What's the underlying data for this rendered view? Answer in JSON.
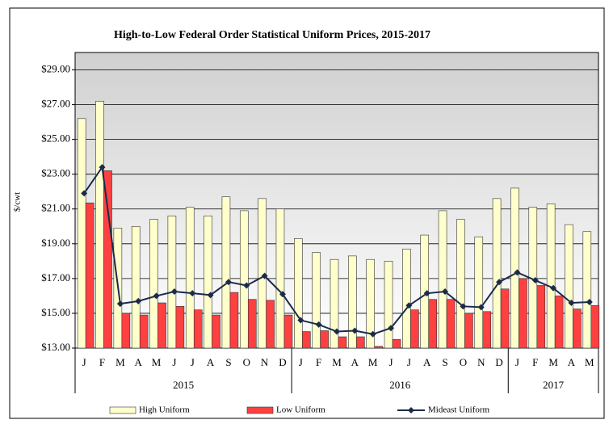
{
  "chart_data": {
    "type": "bar_line",
    "title": "High-to-Low Federal Order Statistical Uniform Prices, 2015-2017",
    "y_label": "$/cwt",
    "categories": [
      "J",
      "F",
      "M",
      "A",
      "M",
      "J",
      "J",
      "A",
      "S",
      "O",
      "N",
      "D",
      "J",
      "F",
      "M",
      "A",
      "M",
      "J",
      "J",
      "A",
      "S",
      "O",
      "N",
      "D",
      "J",
      "F",
      "M",
      "A",
      "M"
    ],
    "groups": [
      {
        "label": "2015",
        "span": 12
      },
      {
        "label": "2016",
        "span": 12
      },
      {
        "label": "2017",
        "span": 5
      }
    ],
    "series": [
      {
        "name": "High Uniform",
        "kind": "bar",
        "color": "#ffffcc",
        "values": [
          26.2,
          27.2,
          19.9,
          20.0,
          20.4,
          20.6,
          21.1,
          20.6,
          21.7,
          20.9,
          21.6,
          21.0,
          19.3,
          18.5,
          18.1,
          18.3,
          18.1,
          18.0,
          18.7,
          19.5,
          20.9,
          20.4,
          19.4,
          21.6,
          22.2,
          21.1,
          21.3,
          20.1,
          19.7
        ]
      },
      {
        "name": "Low Uniform",
        "kind": "bar",
        "color": "#ff4040",
        "values": [
          21.35,
          23.2,
          15.0,
          14.9,
          15.6,
          15.4,
          15.2,
          14.9,
          16.2,
          15.8,
          15.75,
          14.9,
          13.95,
          14.0,
          13.65,
          13.65,
          13.1,
          13.5,
          15.2,
          15.8,
          15.8,
          15.0,
          15.1,
          16.4,
          17.0,
          16.6,
          16.0,
          15.25,
          15.45
        ]
      },
      {
        "name": "Mideast Uniform",
        "kind": "line",
        "color": "#1c2a4a",
        "values": [
          21.9,
          23.4,
          15.55,
          15.7,
          16.0,
          16.25,
          16.15,
          16.05,
          16.8,
          16.6,
          17.15,
          16.1,
          14.6,
          14.35,
          13.95,
          14.0,
          13.8,
          14.15,
          15.45,
          16.15,
          16.25,
          15.4,
          15.35,
          16.8,
          17.35,
          16.9,
          16.45,
          15.6,
          15.65
        ]
      }
    ],
    "ylim": [
      13,
      30
    ],
    "yticks": [
      {
        "value": 13,
        "label": "$13.00"
      },
      {
        "value": 15,
        "label": "$15.00"
      },
      {
        "value": 17,
        "label": "$17.00"
      },
      {
        "value": 19,
        "label": "$19.00"
      },
      {
        "value": 21,
        "label": "$21.00"
      },
      {
        "value": 23,
        "label": "$23.00"
      },
      {
        "value": 25,
        "label": "$25.00"
      },
      {
        "value": 27,
        "label": "$27.00"
      },
      {
        "value": 29,
        "label": "$29.00"
      }
    ],
    "grid": true,
    "legend": "bottom"
  }
}
